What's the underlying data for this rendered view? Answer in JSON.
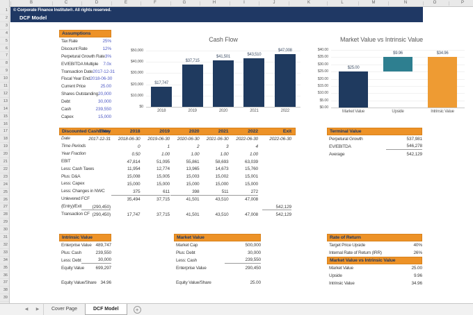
{
  "app": {
    "columns": [
      "A",
      "B",
      "C",
      "D",
      "E",
      "F",
      "G",
      "H",
      "I",
      "J",
      "K",
      "L",
      "M",
      "N",
      "O",
      "P"
    ],
    "rows_visible": 40,
    "tabs": {
      "items": [
        {
          "label": "Cover Page",
          "active": false
        },
        {
          "label": "DCF Model",
          "active": true
        }
      ],
      "add_label": "+"
    }
  },
  "colors": {
    "navy": "#1F3864",
    "orange_header": "#ED9227",
    "teal": "#2E7F90",
    "orange_bar": "#EE9B33",
    "input_blue": "#4F5BC5"
  },
  "banner": {
    "copyright": "© Corporate Finance Institute®. All rights reserved.",
    "title": "DCF Model"
  },
  "assumptions": {
    "title": "Assumptions",
    "rows": [
      {
        "label": "Tax Rate",
        "value": "25%",
        "input": true
      },
      {
        "label": "Discount Rate",
        "value": "12%",
        "input": true
      },
      {
        "label": "Perpetural Growth Rate",
        "value": "3%",
        "input": true
      },
      {
        "label": "EV/EBITDA Multiple",
        "value": "7.0x",
        "input": true
      },
      {
        "label": "Transaction Date",
        "value": "2017-12-31",
        "input": true
      },
      {
        "label": "Fiscal Year End",
        "value": "2018-06-30",
        "input": true
      },
      {
        "label": "Current Price",
        "value": "25.00",
        "input": true
      },
      {
        "label": "Shares Outstanding",
        "value": "20,000",
        "input": true
      },
      {
        "label": "Debt",
        "value": "30,000",
        "input": true
      },
      {
        "label": "Cash",
        "value": "239,550",
        "input": true
      },
      {
        "label": "Capex",
        "value": "15,000",
        "input": true
      }
    ]
  },
  "chart_data": [
    {
      "type": "bar",
      "title": "Cash Flow",
      "categories": [
        "2018",
        "2019",
        "2020",
        "2021",
        "2022"
      ],
      "values": [
        17747,
        37715,
        41501,
        43510,
        47008
      ],
      "labels": [
        "$17,747",
        "$37,715",
        "$41,501",
        "$43,510",
        "$47,008"
      ],
      "ylim": [
        0,
        50000
      ],
      "yticks": [
        "$0",
        "$10,000",
        "$20,000",
        "$30,000",
        "$40,000",
        "$50,000"
      ],
      "bar_color": "#1F3A5F",
      "grid": true,
      "legend": "none"
    },
    {
      "type": "bar",
      "subtype": "waterfall",
      "title": "Market Value vs Intrinsic Value",
      "categories": [
        "Market Value",
        "Upside",
        "Intrinsic Value"
      ],
      "values": [
        25.0,
        9.96,
        34.96
      ],
      "starts": [
        0,
        25.0,
        0
      ],
      "labels": [
        "$25.00",
        "$9.96",
        "$34.96"
      ],
      "ylim": [
        0,
        40
      ],
      "yticks": [
        "$0.00",
        "$5.00",
        "$10.00",
        "$15.00",
        "$20.00",
        "$25.00",
        "$30.00",
        "$35.00",
        "$40.00"
      ],
      "bar_colors": [
        "#1F3A5F",
        "#2E7F90",
        "#EE9B33"
      ],
      "grid": true,
      "legend": "none"
    }
  ],
  "dcf_table": {
    "title": "Discounted Cash Flow",
    "col_headers": [
      "Entry",
      "2018",
      "2019",
      "2020",
      "2021",
      "2022",
      "Exit"
    ],
    "rows": [
      {
        "label": "Date",
        "style": "italic",
        "cells": [
          "2017-12-31",
          "2018-06-30",
          "2019-06-30",
          "2020-06-30",
          "2021-06-30",
          "2022-06-30",
          "2022-06-30"
        ]
      },
      {
        "label": "Time Periods",
        "style": "italic",
        "cells": [
          "",
          "0",
          "1",
          "2",
          "3",
          "4",
          ""
        ],
        "blue_cols": [
          1
        ]
      },
      {
        "label": "Year Fraction",
        "style": "italic",
        "cells": [
          "",
          "0.50",
          "1.00",
          "1.00",
          "1.00",
          "1.00",
          ""
        ]
      },
      {
        "label": "EBIT",
        "cells": [
          "",
          "47,814",
          "51,095",
          "55,861",
          "58,693",
          "63,039",
          ""
        ],
        "blue_cols": [
          1,
          2,
          3,
          4,
          5
        ]
      },
      {
        "label": "Less: Cash Taxes",
        "cells": [
          "",
          "11,954",
          "12,774",
          "13,965",
          "14,673",
          "15,760",
          ""
        ]
      },
      {
        "label": "Plus: D&A",
        "cells": [
          "",
          "15,008",
          "15,005",
          "15,003",
          "15,002",
          "15,001",
          ""
        ],
        "blue_cols": [
          1,
          2,
          3,
          4,
          5
        ]
      },
      {
        "label": "Less: Capex",
        "cells": [
          "",
          "15,000",
          "15,000",
          "15,000",
          "15,000",
          "15,000",
          ""
        ]
      },
      {
        "label": "Less: Changes in NWC",
        "cells": [
          "",
          "375",
          "611",
          "398",
          "511",
          "272",
          ""
        ],
        "blue_cols": [
          1,
          2,
          3,
          4,
          5
        ],
        "underline_cols": [
          1,
          2,
          3,
          4,
          5
        ]
      },
      {
        "label": "Unlevered FCF",
        "cells": [
          "",
          "35,494",
          "37,715",
          "41,501",
          "43,510",
          "47,008",
          ""
        ]
      },
      {
        "label": "(Entry)/Exit",
        "cells": [
          "(290,450)",
          "",
          "",
          "",
          "",
          "",
          "542,129"
        ],
        "underline_cols": [
          0,
          6
        ]
      },
      {
        "label": "Transaction CF",
        "cells": [
          "(290,450)",
          "17,747",
          "37,715",
          "41,501",
          "43,510",
          "47,008",
          "542,129"
        ]
      }
    ]
  },
  "terminal_value": {
    "title": "Terminal Value",
    "rows": [
      {
        "label": "Perpetural Growth",
        "value": "537,981"
      },
      {
        "label": "EV/EBITDA",
        "value": "546,278",
        "underline": true
      },
      {
        "label": "Average",
        "value": "542,129"
      }
    ]
  },
  "intrinsic_value": {
    "title": "Intrinsic Value",
    "rows": [
      {
        "label": "Enterprise Value",
        "value": "489,747"
      },
      {
        "label": "Plus: Cash",
        "value": "239,550"
      },
      {
        "label": "Less: Debt",
        "value": "30,000",
        "underline": true
      },
      {
        "label": "Equity Value",
        "value": "699,297"
      },
      {
        "label": "",
        "value": ""
      },
      {
        "label": "Equity Value/Share",
        "value": "34.96"
      }
    ]
  },
  "market_value": {
    "title": "Market Value",
    "rows": [
      {
        "label": "Market Cap",
        "value": "500,000"
      },
      {
        "label": "Plus: Debt",
        "value": "30,000"
      },
      {
        "label": "Less: Cash",
        "value": "239,550",
        "underline": true
      },
      {
        "label": "Enterprise Value",
        "value": "290,450"
      },
      {
        "label": "",
        "value": ""
      },
      {
        "label": "Equity Value/Share",
        "value": "25.00"
      }
    ]
  },
  "rate_of_return": {
    "title": "Rate of Return",
    "rows": [
      {
        "label": "Target Price Upside",
        "value": "40%"
      },
      {
        "label": "Internal Rate of Return (IRR)",
        "value": "26%"
      }
    ]
  },
  "mv_vs_iv": {
    "title": "Market Value vs Intrinsic Value",
    "rows": [
      {
        "label": "Market Value",
        "value": "25.00"
      },
      {
        "label": "Upside",
        "value": "9.96"
      },
      {
        "label": "Intrinsic Value",
        "value": "34.96"
      }
    ]
  }
}
